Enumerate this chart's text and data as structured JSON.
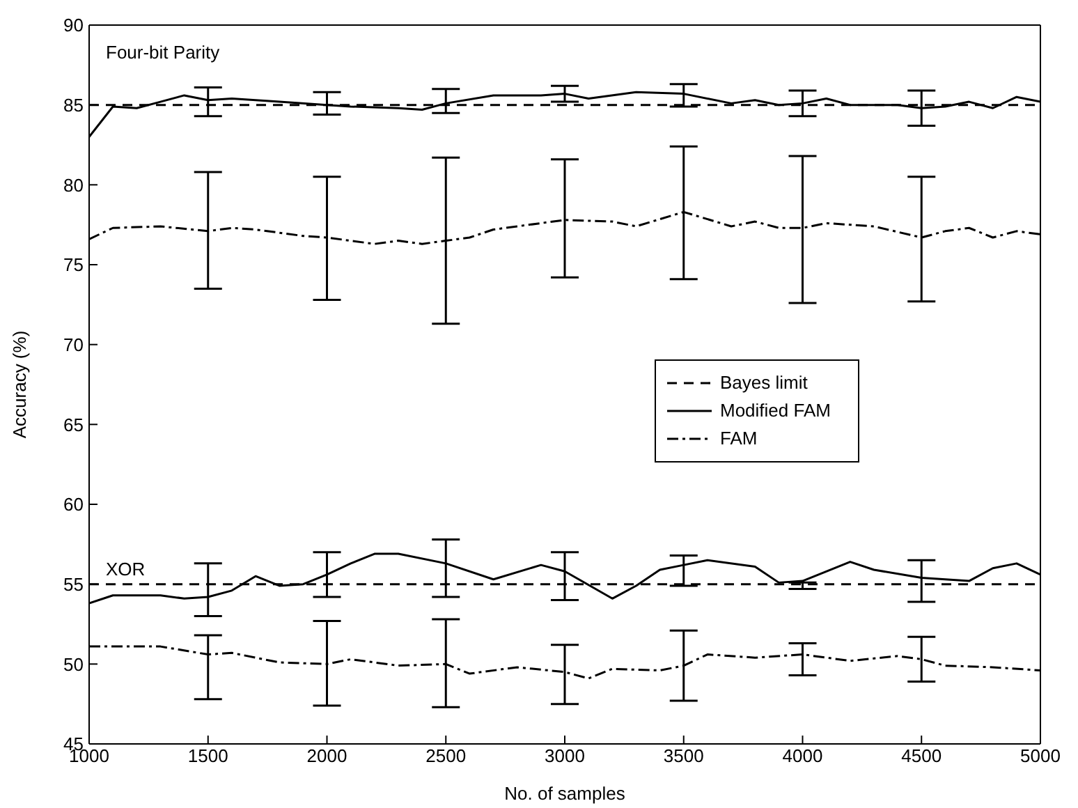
{
  "chart_data": {
    "type": "line",
    "xlabel": "No. of samples",
    "ylabel": "Accuracy (%)",
    "xlim": [
      1000,
      5000
    ],
    "xticks": [
      1000,
      1500,
      2000,
      2500,
      3000,
      3500,
      4000,
      4500,
      5000
    ],
    "ylim": [
      45,
      90
    ],
    "yticks": [
      45,
      50,
      55,
      60,
      65,
      70,
      75,
      80,
      85,
      90
    ],
    "legend": "right",
    "marker": "none",
    "annotations": [
      "Four-bit Parity",
      "XOR"
    ],
    "series": [
      {
        "name": "Bayes limit",
        "color": "#000000",
        "line_style": "dashed",
        "x": [
          1000,
          5000
        ],
        "values": [
          85,
          85
        ]
      },
      {
        "name": "Modified FAM",
        "color": "#000000",
        "line_style": "solid",
        "x": [
          1000,
          1100,
          1200,
          1300,
          1400,
          1500,
          1600,
          1800,
          2000,
          2100,
          2300,
          2400,
          2500,
          2700,
          2900,
          3000,
          3100,
          3300,
          3500,
          3700,
          3800,
          3900,
          4000,
          4100,
          4200,
          4400,
          4500,
          4600,
          4700,
          4800,
          4900,
          5000
        ],
        "values": [
          83.0,
          84.9,
          84.8,
          85.2,
          85.6,
          85.3,
          85.4,
          85.2,
          85.0,
          84.9,
          84.8,
          84.7,
          85.1,
          85.6,
          85.6,
          85.7,
          85.4,
          85.8,
          85.7,
          85.1,
          85.3,
          85.0,
          85.1,
          85.4,
          85.0,
          85.0,
          84.8,
          84.9,
          85.2,
          84.8,
          85.5,
          85.2
        ],
        "errors": [
          null,
          null,
          null,
          null,
          null,
          [
            84.3,
            86.1
          ],
          null,
          null,
          [
            84.4,
            85.8
          ],
          null,
          null,
          null,
          [
            84.5,
            86.0
          ],
          null,
          null,
          [
            85.2,
            86.2
          ],
          null,
          null,
          [
            84.9,
            86.3
          ],
          null,
          null,
          null,
          [
            84.3,
            85.9
          ],
          null,
          null,
          null,
          [
            83.7,
            85.9
          ],
          null,
          null,
          null,
          null,
          null
        ]
      },
      {
        "name": "FAM",
        "color": "#000000",
        "line_style": "dashdot",
        "x": [
          1000,
          1100,
          1300,
          1500,
          1600,
          1700,
          1900,
          2000,
          2100,
          2200,
          2300,
          2400,
          2500,
          2600,
          2700,
          2800,
          3000,
          3200,
          3300,
          3500,
          3700,
          3800,
          3900,
          4000,
          4100,
          4300,
          4500,
          4600,
          4700,
          4800,
          4900,
          5000
        ],
        "values": [
          76.6,
          77.3,
          77.4,
          77.1,
          77.3,
          77.2,
          76.8,
          76.7,
          76.5,
          76.3,
          76.5,
          76.3,
          76.5,
          76.7,
          77.2,
          77.4,
          77.8,
          77.7,
          77.4,
          78.3,
          77.4,
          77.7,
          77.3,
          77.3,
          77.6,
          77.4,
          76.7,
          77.1,
          77.3,
          76.7,
          77.1,
          76.9
        ],
        "errors": [
          null,
          null,
          null,
          [
            73.5,
            80.8
          ],
          null,
          null,
          null,
          [
            72.8,
            80.5
          ],
          null,
          null,
          null,
          null,
          [
            71.3,
            81.7
          ],
          null,
          null,
          null,
          [
            74.2,
            81.6
          ],
          null,
          null,
          [
            74.1,
            82.4
          ],
          null,
          null,
          null,
          [
            72.6,
            81.8
          ],
          null,
          null,
          [
            72.7,
            80.5
          ],
          null,
          null,
          null,
          null,
          null
        ]
      },
      {
        "color": "#000000",
        "line_style": "dashed",
        "x": [
          1000,
          5000
        ],
        "values": [
          55,
          55
        ]
      },
      {
        "color": "#000000",
        "line_style": "solid",
        "x": [
          1000,
          1100,
          1300,
          1400,
          1500,
          1600,
          1700,
          1800,
          1900,
          2000,
          2100,
          2200,
          2300,
          2500,
          2700,
          2900,
          3000,
          3200,
          3300,
          3400,
          3500,
          3600,
          3800,
          3900,
          4000,
          4200,
          4300,
          4500,
          4700,
          4800,
          4900,
          5000
        ],
        "values": [
          53.8,
          54.3,
          54.3,
          54.1,
          54.2,
          54.6,
          55.5,
          54.9,
          55.0,
          55.6,
          56.3,
          56.9,
          56.9,
          56.3,
          55.3,
          56.2,
          55.8,
          54.1,
          54.9,
          55.9,
          56.2,
          56.5,
          56.1,
          55.1,
          55.2,
          56.4,
          55.9,
          55.4,
          55.2,
          56.0,
          56.3,
          55.6
        ],
        "errors": [
          null,
          null,
          null,
          null,
          [
            53.0,
            56.3
          ],
          null,
          null,
          null,
          null,
          [
            54.2,
            57.0
          ],
          null,
          null,
          null,
          [
            54.2,
            57.8
          ],
          null,
          null,
          [
            54.0,
            57.0
          ],
          null,
          null,
          null,
          [
            54.9,
            56.8
          ],
          null,
          null,
          null,
          [
            54.7,
            55.1
          ],
          null,
          null,
          [
            53.9,
            56.5
          ],
          null,
          null,
          null,
          null
        ]
      },
      {
        "color": "#000000",
        "line_style": "dashdot",
        "x": [
          1000,
          1300,
          1500,
          1600,
          1800,
          2000,
          2100,
          2300,
          2500,
          2600,
          2800,
          3000,
          3100,
          3200,
          3400,
          3500,
          3600,
          3800,
          4000,
          4200,
          4400,
          4500,
          4600,
          4800,
          5000
        ],
        "values": [
          51.1,
          51.1,
          50.6,
          50.7,
          50.1,
          50.0,
          50.3,
          49.9,
          50.0,
          49.4,
          49.8,
          49.5,
          49.1,
          49.7,
          49.6,
          49.9,
          50.6,
          50.4,
          50.6,
          50.2,
          50.5,
          50.3,
          49.9,
          49.8,
          49.6
        ],
        "errors": [
          null,
          null,
          [
            47.8,
            51.8
          ],
          null,
          null,
          [
            47.4,
            52.7
          ],
          null,
          null,
          [
            47.3,
            52.8
          ],
          null,
          null,
          [
            47.5,
            51.2
          ],
          null,
          null,
          null,
          [
            47.7,
            52.1
          ],
          null,
          null,
          [
            49.3,
            51.3
          ],
          null,
          null,
          [
            48.9,
            51.7
          ],
          null,
          null,
          null
        ]
      }
    ]
  }
}
